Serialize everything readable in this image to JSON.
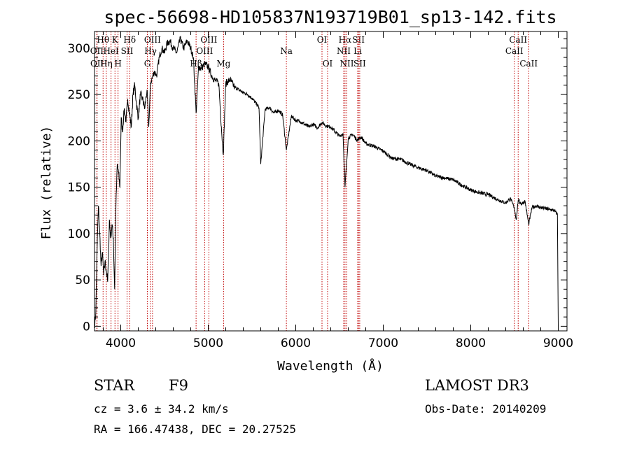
{
  "chart_data": {
    "type": "line",
    "title": "spec-56698-HD105837N193719B01_sp13-142.fits",
    "xlabel": "Wavelength (Å)",
    "ylabel": "Flux (relative)",
    "xlim": [
      3700,
      9100
    ],
    "ylim": [
      -5,
      318
    ],
    "x_ticks": [
      4000,
      5000,
      6000,
      7000,
      8000,
      9000
    ],
    "y_ticks": [
      0,
      50,
      100,
      150,
      200,
      250,
      300
    ],
    "series": [
      {
        "name": "flux",
        "color": "#000000",
        "x": [
          3700,
          3715,
          3730,
          3745,
          3760,
          3775,
          3790,
          3805,
          3820,
          3835,
          3850,
          3860,
          3870,
          3885,
          3900,
          3915,
          3930,
          3945,
          3960,
          3975,
          3990,
          4005,
          4020,
          4040,
          4060,
          4080,
          4100,
          4120,
          4140,
          4160,
          4180,
          4200,
          4225,
          4250,
          4275,
          4300,
          4320,
          4340,
          4360,
          4385,
          4410,
          4440,
          4470,
          4500,
          4530,
          4560,
          4600,
          4640,
          4680,
          4720,
          4760,
          4800,
          4830,
          4861,
          4890,
          4920,
          4960,
          5000,
          5040,
          5080,
          5120,
          5150,
          5172,
          5200,
          5250,
          5300,
          5350,
          5400,
          5450,
          5500,
          5550,
          5580,
          5600,
          5650,
          5700,
          5750,
          5800,
          5850,
          5893,
          5950,
          6000,
          6050,
          6100,
          6150,
          6200,
          6250,
          6300,
          6350,
          6400,
          6450,
          6500,
          6540,
          6563,
          6600,
          6650,
          6700,
          6750,
          6800,
          6900,
          7000,
          7100,
          7200,
          7300,
          7400,
          7500,
          7600,
          7700,
          7800,
          7900,
          8000,
          8100,
          8200,
          8300,
          8400,
          8450,
          8498,
          8520,
          8542,
          8580,
          8620,
          8662,
          8700,
          8750,
          8800,
          8850,
          8900,
          8950,
          8990,
          9000
        ],
        "values": [
          0,
          15,
          85,
          130,
          100,
          65,
          80,
          55,
          70,
          60,
          48,
          75,
          115,
          95,
          110,
          95,
          40,
          130,
          175,
          165,
          150,
          225,
          210,
          235,
          220,
          245,
          230,
          215,
          250,
          260,
          240,
          225,
          250,
          245,
          235,
          255,
          215,
          262,
          268,
          275,
          270,
          290,
          300,
          295,
          305,
          308,
          300,
          295,
          310,
          300,
          308,
          300,
          290,
          230,
          280,
          278,
          283,
          280,
          270,
          265,
          262,
          215,
          185,
          262,
          266,
          258,
          255,
          252,
          250,
          246,
          240,
          236,
          175,
          234,
          236,
          230,
          233,
          228,
          190,
          227,
          222,
          221,
          218,
          215,
          218,
          214,
          220,
          216,
          215,
          210,
          205,
          208,
          150,
          203,
          207,
          201,
          204,
          197,
          194,
          189,
          181,
          180,
          175,
          171,
          168,
          162,
          160,
          158,
          152,
          147,
          144,
          142,
          137,
          133,
          138,
          128,
          115,
          136,
          132,
          135,
          110,
          128,
          130,
          128,
          127,
          126,
          125,
          121,
          0
        ]
      }
    ],
    "spectral_lines": [
      {
        "label": "Hθ",
        "wavelength": 3798,
        "row": 1
      },
      {
        "label": "OII",
        "wavelength": 3727,
        "row": 2
      },
      {
        "label": "OII",
        "wavelength": 3729,
        "row": 3
      },
      {
        "label": "K",
        "wavelength": 3934,
        "row": 1
      },
      {
        "label": "HeI",
        "wavelength": 3889,
        "row": 2
      },
      {
        "label": "Hη",
        "wavelength": 3835,
        "row": 3
      },
      {
        "label": "H",
        "wavelength": 3969,
        "row": 3
      },
      {
        "label": "SII",
        "wavelength": 4072,
        "row": 2
      },
      {
        "label": "Hδ",
        "wavelength": 4102,
        "row": 1
      },
      {
        "label": "OIII",
        "wavelength": 4363,
        "row": 1
      },
      {
        "label": "Hγ",
        "wavelength": 4341,
        "row": 2
      },
      {
        "label": "G",
        "wavelength": 4304,
        "row": 3
      },
      {
        "label": "OIII",
        "wavelength": 5007,
        "row": 1
      },
      {
        "label": "OIII",
        "wavelength": 4959,
        "row": 2
      },
      {
        "label": "Hβ",
        "wavelength": 4861,
        "row": 3
      },
      {
        "label": "Mg",
        "wavelength": 5175,
        "row": 3
      },
      {
        "label": "Na",
        "wavelength": 5893,
        "row": 2
      },
      {
        "label": "OI",
        "wavelength": 6300,
        "row": 1
      },
      {
        "label": "OI",
        "wavelength": 6364,
        "row": 3
      },
      {
        "label": "Hα",
        "wavelength": 6563,
        "row": 1
      },
      {
        "label": "NII",
        "wavelength": 6548,
        "row": 2
      },
      {
        "label": "NII",
        "wavelength": 6584,
        "row": 3
      },
      {
        "label": "SII",
        "wavelength": 6717,
        "row": 1
      },
      {
        "label": "Li",
        "wavelength": 6708,
        "row": 2
      },
      {
        "label": "SII",
        "wavelength": 6731,
        "row": 3
      },
      {
        "label": "CaII",
        "wavelength": 8542,
        "row": 1
      },
      {
        "label": "CaII",
        "wavelength": 8498,
        "row": 2
      },
      {
        "label": "CaII",
        "wavelength": 8662,
        "row": 3
      }
    ],
    "line_color": "#c00000"
  },
  "info": {
    "class": "STAR",
    "subclass": "F9",
    "survey": "LAMOST DR3",
    "cz": "cz = 3.6 ± 34.2 km/s",
    "obs_date": "Obs-Date: 20140209",
    "coords": "RA = 166.47438, DEC =  20.27525"
  }
}
